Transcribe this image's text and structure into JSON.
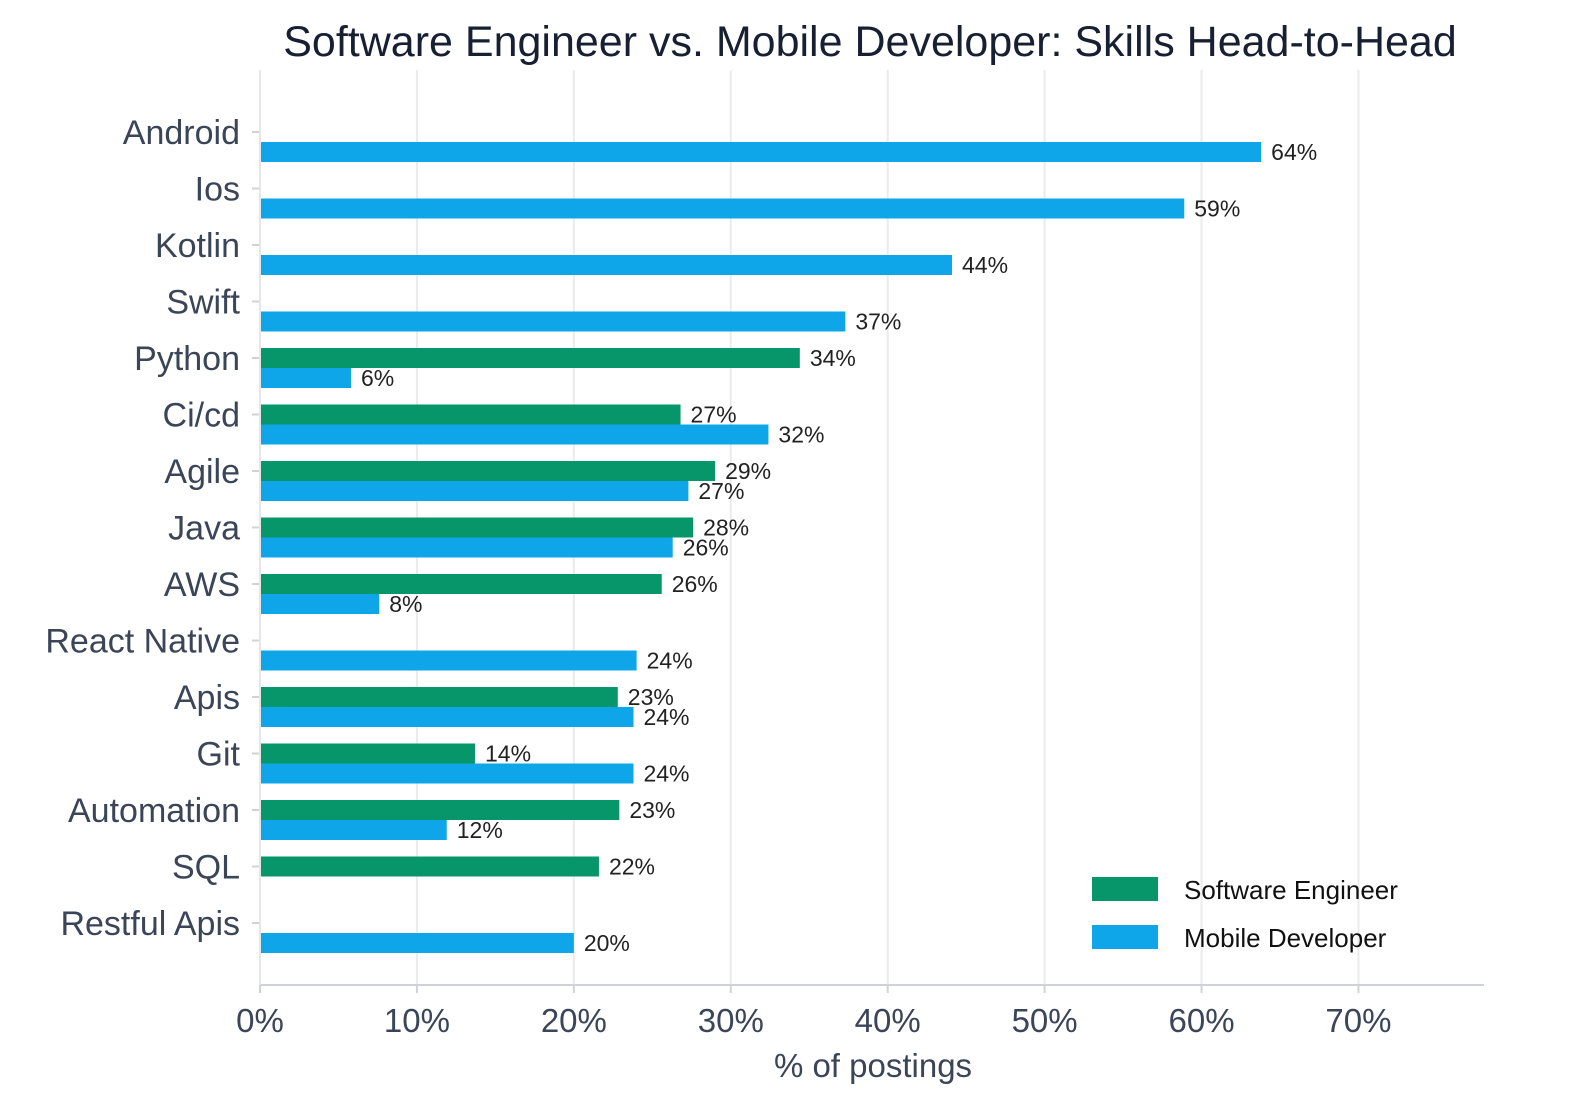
{
  "chart_data": {
    "type": "bar",
    "orientation": "horizontal",
    "title": "Software Engineer vs. Mobile Developer: Skills Head-to-Head",
    "xlabel": "% of postings",
    "ylabel": "",
    "xlim": [
      0,
      78
    ],
    "x_ticks": [
      0,
      10,
      20,
      30,
      40,
      50,
      60,
      70
    ],
    "x_tick_labels": [
      "0%",
      "10%",
      "20%",
      "30%",
      "40%",
      "50%",
      "60%",
      "70%"
    ],
    "grid": "vertical",
    "legend_position": "bottom-right",
    "categories": [
      "Android",
      "Ios",
      "Kotlin",
      "Swift",
      "Python",
      "Ci/cd",
      "Agile",
      "Java",
      "AWS",
      "React Native",
      "Apis",
      "Git",
      "Automation",
      "SQL",
      "Restful Apis"
    ],
    "series": [
      {
        "name": "Software Engineer",
        "color": "#079669",
        "values": [
          null,
          null,
          null,
          null,
          34.4,
          26.8,
          29.0,
          27.6,
          25.6,
          null,
          22.8,
          13.7,
          22.9,
          21.6,
          null
        ],
        "labels": [
          "",
          "",
          "",
          "",
          "34%",
          "27%",
          "29%",
          "28%",
          "26%",
          "",
          "23%",
          "14%",
          "23%",
          "22%",
          ""
        ]
      },
      {
        "name": "Mobile Developer",
        "color": "#0ea5e9",
        "values": [
          63.8,
          58.9,
          44.1,
          37.3,
          5.8,
          32.4,
          27.3,
          26.3,
          7.6,
          24.0,
          23.8,
          23.8,
          11.9,
          null,
          20.0
        ],
        "labels": [
          "64%",
          "59%",
          "44%",
          "37%",
          "6%",
          "32%",
          "27%",
          "26%",
          "8%",
          "24%",
          "24%",
          "24%",
          "12%",
          "",
          "20%"
        ]
      }
    ]
  }
}
